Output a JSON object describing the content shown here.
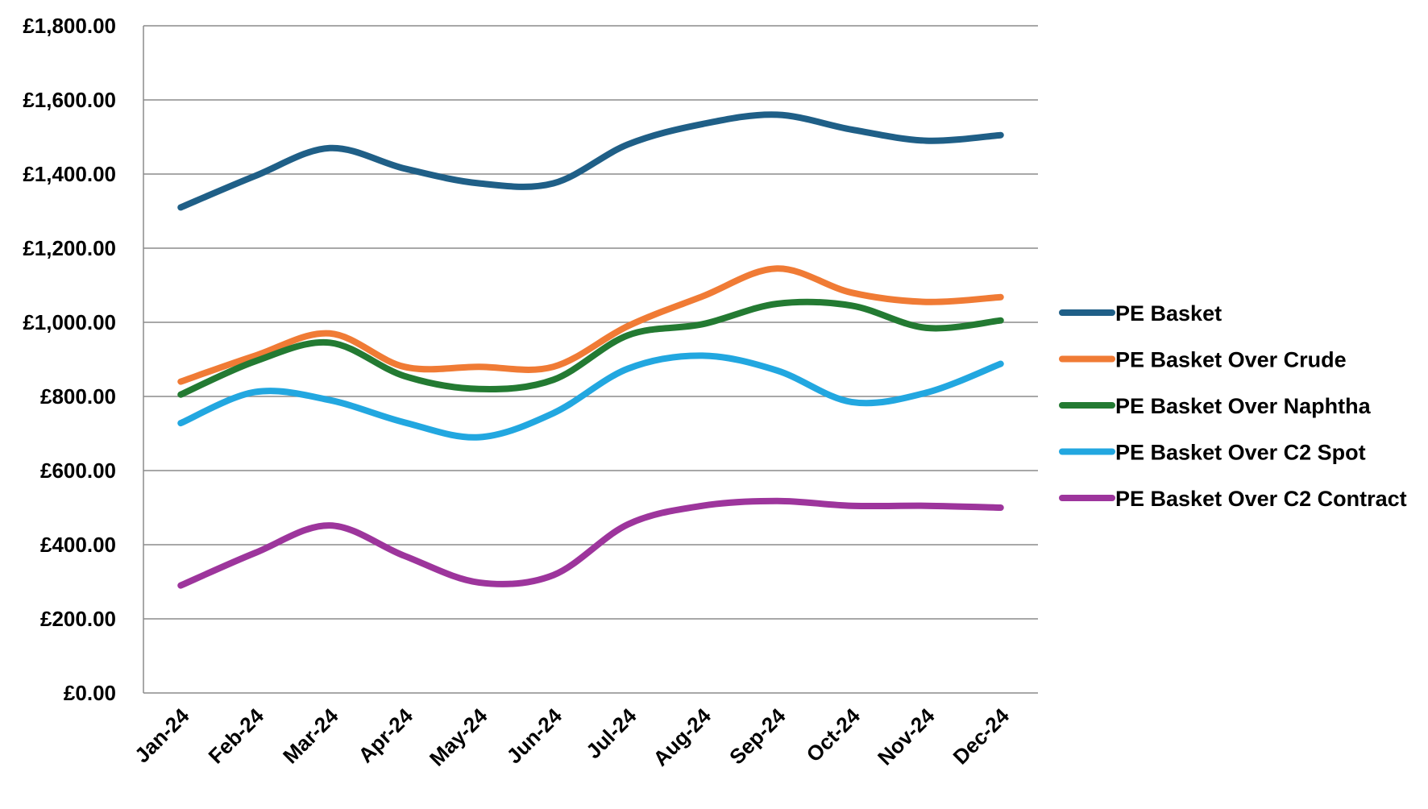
{
  "chart_data": {
    "type": "line",
    "title": "",
    "xlabel": "",
    "ylabel": "",
    "categories": [
      "Jan-24",
      "Feb-24",
      "Mar-24",
      "Apr-24",
      "May-24",
      "Jun-24",
      "Jul-24",
      "Aug-24",
      "Sep-24",
      "Oct-24",
      "Nov-24",
      "Dec-24"
    ],
    "ylim": [
      0,
      1800
    ],
    "yticks": [
      0,
      200,
      400,
      600,
      800,
      1000,
      1200,
      1400,
      1600,
      1800
    ],
    "ytick_labels": [
      "£0.00",
      "£200.00",
      "£400.00",
      "£600.00",
      "£800.00",
      "£1,000.00",
      "£1,200.00",
      "£1,400.00",
      "£1,600.00",
      "£1,800.00"
    ],
    "grid": true,
    "smooth": true,
    "legend_position": "right",
    "series": [
      {
        "name": "PE Basket",
        "color": "#1f5f87",
        "values": [
          1310,
          1395,
          1470,
          1415,
          1375,
          1375,
          1480,
          1535,
          1560,
          1520,
          1490,
          1505
        ]
      },
      {
        "name": "PE Basket Over Crude",
        "color": "#f07b35",
        "values": [
          840,
          910,
          970,
          880,
          880,
          880,
          990,
          1070,
          1145,
          1080,
          1055,
          1068
        ]
      },
      {
        "name": "PE Basket Over Naphtha",
        "color": "#237a32",
        "values": [
          805,
          895,
          945,
          855,
          820,
          845,
          965,
          995,
          1050,
          1045,
          985,
          1005
        ]
      },
      {
        "name": "PE Basket Over C2 Spot",
        "color": "#22a7e0",
        "values": [
          728,
          812,
          790,
          730,
          690,
          755,
          875,
          910,
          870,
          785,
          810,
          888
        ]
      },
      {
        "name": "PE Basket Over C2 Contract",
        "color": "#9d359c",
        "values": [
          290,
          378,
          452,
          370,
          298,
          318,
          455,
          505,
          518,
          505,
          505,
          500
        ]
      }
    ]
  }
}
